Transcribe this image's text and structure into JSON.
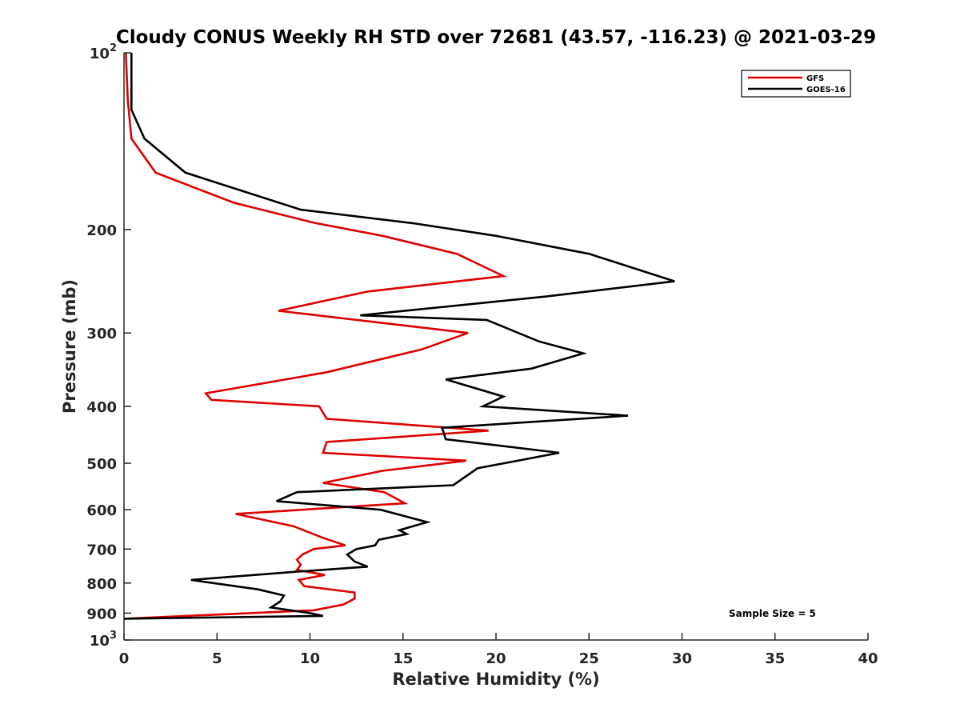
{
  "chart_data": {
    "type": "line",
    "title": "Cloudy CONUS Weekly RH STD over 72681 (43.57, -116.23) @ 2021-03-29",
    "xlabel": "Relative Humidity (%)",
    "ylabel": "Pressure (mb)",
    "xlim": [
      0,
      40
    ],
    "ylim": [
      100,
      1000
    ],
    "y_scale": "log",
    "y_reversed": true,
    "x_ticks": [
      "0",
      "5",
      "10",
      "15",
      "20",
      "25",
      "30",
      "35",
      "40"
    ],
    "y_ticks": [
      {
        "value": 100,
        "base": "10",
        "exp": "2"
      },
      {
        "value": 200,
        "label": "200"
      },
      {
        "value": 300,
        "label": "300"
      },
      {
        "value": 400,
        "label": "400"
      },
      {
        "value": 500,
        "label": "500"
      },
      {
        "value": 600,
        "label": "600"
      },
      {
        "value": 700,
        "label": "700"
      },
      {
        "value": 800,
        "label": "800"
      },
      {
        "value": 900,
        "label": "900"
      },
      {
        "value": 1000,
        "base": "10",
        "exp": "3"
      }
    ],
    "grid": false,
    "legend_position": "top-right",
    "series": [
      {
        "name": "GFS",
        "color": "#dd0000",
        "x": [
          0.1,
          0.2,
          0.4,
          1.7,
          5.9,
          10.3,
          13.9,
          17.9,
          20.4,
          13.1,
          8.3,
          18.5,
          16.0,
          10.9,
          4.4,
          4.7,
          10.5,
          10.9,
          19.6,
          10.9,
          10.7,
          18.4,
          13.9,
          10.7,
          14.0,
          15.1,
          6.0,
          9.1,
          10.7,
          11.9,
          10.2,
          9.6,
          9.3,
          9.5,
          9.3,
          10.8,
          9.4,
          9.7,
          12.4,
          12.4,
          11.8,
          10.2,
          0.0
        ],
        "y": [
          100,
          120,
          140,
          160,
          180,
          195,
          205,
          220,
          240,
          255,
          275,
          300,
          320,
          350,
          380,
          390,
          400,
          420,
          440,
          460,
          480,
          495,
          515,
          540,
          560,
          585,
          610,
          640,
          670,
          690,
          700,
          715,
          730,
          745,
          760,
          775,
          790,
          810,
          830,
          850,
          870,
          890,
          920
        ]
      },
      {
        "name": "GOES-16",
        "color": "#000000",
        "x": [
          0.4,
          0.4,
          0.4,
          1.1,
          3.3,
          9.5,
          15.5,
          20.0,
          25.0,
          29.6,
          22.7,
          12.7,
          19.5,
          22.3,
          24.7,
          21.9,
          17.3,
          20.4,
          19.3,
          27.1,
          17.1,
          17.3,
          23.4,
          19.0,
          17.7,
          9.3,
          8.2,
          13.8,
          16.3,
          14.8,
          15.2,
          13.7,
          13.5,
          12.5,
          12.0,
          12.4,
          13.1,
          9.3,
          3.6,
          7.2,
          8.6,
          8.4,
          7.9,
          10.0,
          10.7,
          0.0
        ],
        "y": [
          100,
          115,
          125,
          140,
          160,
          185,
          195,
          205,
          220,
          245,
          260,
          280,
          285,
          310,
          325,
          345,
          360,
          385,
          400,
          415,
          435,
          455,
          480,
          510,
          545,
          560,
          580,
          600,
          630,
          650,
          660,
          675,
          690,
          700,
          715,
          735,
          750,
          765,
          790,
          820,
          840,
          860,
          880,
          900,
          910,
          920
        ]
      }
    ],
    "annotations": [
      "Sample Size = 5"
    ]
  }
}
